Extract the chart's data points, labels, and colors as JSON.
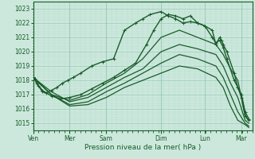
{
  "background_color": "#cce8dc",
  "grid_major_color": "#99ccb8",
  "grid_minor_color": "#b8ddd0",
  "line_color": "#1a5c2a",
  "xlabel": "Pression niveau de la mer( hPa )",
  "ylim": [
    1014.5,
    1023.5
  ],
  "yticks": [
    1015,
    1016,
    1017,
    1018,
    1019,
    1020,
    1021,
    1022,
    1023
  ],
  "day_labels": [
    "Ven",
    "Mer",
    "Sam",
    "Dim",
    "Lun",
    "Mar"
  ],
  "xlim": [
    0,
    6.0
  ],
  "day_x": [
    0.0,
    1.0,
    2.0,
    3.5,
    4.7,
    5.7
  ],
  "vline_x": [
    0.0,
    1.0,
    2.0,
    3.5,
    4.7,
    5.7
  ],
  "series": [
    {
      "x": [
        0.0,
        0.05,
        0.1,
        0.15,
        0.25,
        0.35,
        0.5,
        0.65,
        0.8,
        0.95,
        1.1,
        1.3,
        1.6,
        1.9,
        2.2,
        2.5,
        2.8,
        3.0,
        3.2,
        3.5,
        3.7,
        3.9,
        4.1,
        4.3,
        4.5,
        4.7,
        4.9,
        5.0,
        5.1,
        5.15,
        5.2,
        5.3,
        5.5,
        5.6,
        5.7,
        5.8,
        5.9
      ],
      "y": [
        1018.2,
        1018.1,
        1017.9,
        1017.6,
        1017.2,
        1017.1,
        1017.3,
        1017.5,
        1017.8,
        1018.0,
        1018.2,
        1018.5,
        1019.0,
        1019.3,
        1019.5,
        1021.5,
        1022.0,
        1022.3,
        1022.6,
        1022.8,
        1022.5,
        1022.3,
        1022.0,
        1022.1,
        1022.0,
        1021.8,
        1021.5,
        1020.5,
        1021.0,
        1020.8,
        1020.5,
        1020.0,
        1018.5,
        1017.5,
        1016.8,
        1015.5,
        1015.2
      ],
      "marker": true,
      "linewidth": 1.0
    },
    {
      "x": [
        0.0,
        0.1,
        0.25,
        0.5,
        0.75,
        1.0,
        1.3,
        1.6,
        1.9,
        2.2,
        2.5,
        2.8,
        3.1,
        3.3,
        3.5,
        3.7,
        3.9,
        4.1,
        4.3,
        4.5,
        4.7,
        4.9,
        5.0,
        5.1,
        5.2,
        5.3,
        5.5,
        5.6,
        5.7,
        5.8,
        5.9
      ],
      "y": [
        1018.2,
        1017.8,
        1017.3,
        1016.9,
        1016.7,
        1016.8,
        1017.0,
        1017.4,
        1017.8,
        1018.2,
        1018.7,
        1019.2,
        1020.5,
        1021.5,
        1022.3,
        1022.6,
        1022.5,
        1022.3,
        1022.5,
        1022.0,
        1021.8,
        1021.0,
        1020.6,
        1020.8,
        1020.3,
        1019.5,
        1018.0,
        1017.5,
        1017.0,
        1015.8,
        1015.3
      ],
      "marker": true,
      "linewidth": 1.0
    },
    {
      "x": [
        0.0,
        0.5,
        1.0,
        1.5,
        2.0,
        2.5,
        3.0,
        3.5,
        4.0,
        4.5,
        5.0,
        5.2,
        5.4,
        5.6,
        5.8,
        5.9
      ],
      "y": [
        1018.2,
        1017.0,
        1016.6,
        1017.0,
        1017.8,
        1018.5,
        1019.5,
        1021.0,
        1021.5,
        1021.0,
        1020.5,
        1019.8,
        1018.8,
        1018.0,
        1015.5,
        1015.2
      ],
      "marker": false,
      "linewidth": 0.9
    },
    {
      "x": [
        0.0,
        0.5,
        1.0,
        1.5,
        2.0,
        2.5,
        3.0,
        3.5,
        4.0,
        4.5,
        5.0,
        5.2,
        5.4,
        5.6,
        5.8,
        5.9
      ],
      "y": [
        1018.2,
        1017.2,
        1016.5,
        1016.8,
        1017.5,
        1018.2,
        1018.8,
        1020.0,
        1020.5,
        1020.2,
        1019.8,
        1019.0,
        1017.8,
        1016.8,
        1015.2,
        1015.0
      ],
      "marker": false,
      "linewidth": 0.9
    },
    {
      "x": [
        0.0,
        0.5,
        1.0,
        1.5,
        2.0,
        2.5,
        3.0,
        3.5,
        4.0,
        4.5,
        5.0,
        5.2,
        5.4,
        5.6,
        5.8,
        5.9
      ],
      "y": [
        1018.2,
        1017.0,
        1016.3,
        1016.5,
        1017.2,
        1017.8,
        1018.5,
        1019.2,
        1019.8,
        1019.5,
        1019.0,
        1018.2,
        1017.0,
        1015.8,
        1015.0,
        1014.8
      ],
      "marker": false,
      "linewidth": 0.9
    },
    {
      "x": [
        0.0,
        0.5,
        1.0,
        1.5,
        2.0,
        2.5,
        3.0,
        3.5,
        4.0,
        4.5,
        5.0,
        5.2,
        5.4,
        5.6,
        5.8,
        5.9
      ],
      "y": [
        1018.2,
        1017.0,
        1016.2,
        1016.3,
        1016.8,
        1017.5,
        1018.0,
        1018.5,
        1019.0,
        1018.8,
        1018.2,
        1017.5,
        1016.2,
        1015.2,
        1014.9,
        1014.7
      ],
      "marker": false,
      "linewidth": 0.9
    }
  ]
}
